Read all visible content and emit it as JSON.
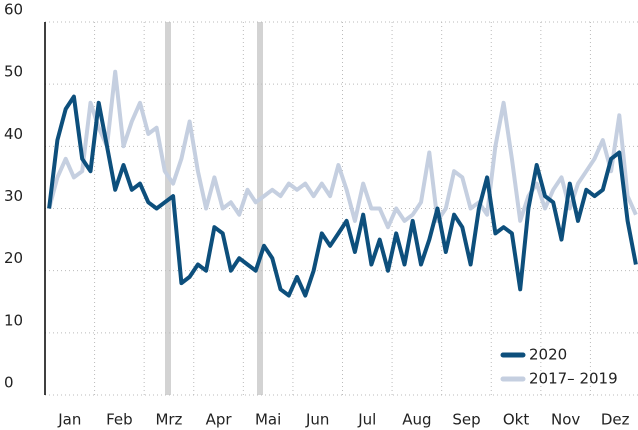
{
  "chart_data": {
    "type": "line",
    "categories": [
      null,
      null,
      null,
      "Jan",
      null,
      null,
      null,
      null,
      null,
      "Feb",
      null,
      null,
      null,
      null,
      null,
      "Mrz",
      null,
      null,
      null,
      null,
      null,
      "Apr",
      null,
      null,
      null,
      null,
      null,
      "Mai",
      null,
      null,
      null,
      null,
      null,
      "Jun",
      null,
      null,
      null,
      null,
      null,
      "Jul",
      null,
      null,
      null,
      null,
      null,
      "Aug",
      null,
      null,
      null,
      null,
      null,
      "Sep",
      null,
      null,
      null,
      null,
      null,
      "Okt",
      null,
      null,
      null,
      null,
      null,
      "Nov",
      null,
      null,
      null,
      null,
      null,
      "Dez",
      null,
      null
    ],
    "series": [
      {
        "name": "2020",
        "color": "#0d4f7c",
        "values": [
          30,
          41,
          46,
          48,
          38,
          36,
          47,
          40,
          33,
          37,
          33,
          34,
          31,
          30,
          31,
          32,
          18,
          19,
          21,
          20,
          27,
          26,
          20,
          22,
          21,
          20,
          24,
          22,
          17,
          16,
          19,
          16,
          20,
          26,
          24,
          26,
          28,
          23,
          29,
          21,
          25,
          20,
          26,
          21,
          28,
          21,
          25,
          30,
          23,
          29,
          27,
          21,
          30,
          35,
          26,
          27,
          26,
          17,
          30,
          37,
          32,
          31,
          25,
          34,
          28,
          33,
          32,
          33,
          38,
          39,
          28,
          21
        ]
      },
      {
        "name": "2017– 2019",
        "color": "#c5cfe0",
        "values": [
          30,
          35,
          38,
          35,
          36,
          47,
          43,
          40,
          52,
          40,
          44,
          47,
          42,
          43,
          36,
          34,
          38,
          44,
          36,
          30,
          35,
          30,
          31,
          29,
          33,
          31,
          32,
          33,
          32,
          34,
          33,
          34,
          32,
          34,
          32,
          37,
          33,
          28,
          34,
          30,
          30,
          27,
          30,
          28,
          29,
          31,
          39,
          28,
          30,
          36,
          35,
          30,
          31,
          29,
          40,
          47,
          38,
          28,
          32,
          34,
          30,
          33,
          35,
          30,
          34,
          36,
          38,
          41,
          36,
          45,
          32,
          29
        ]
      }
    ],
    "ylim": [
      0,
      60
    ],
    "yticks": [
      0,
      10,
      20,
      30,
      40,
      50,
      60
    ],
    "grid": true,
    "legend": "bottom-right"
  }
}
